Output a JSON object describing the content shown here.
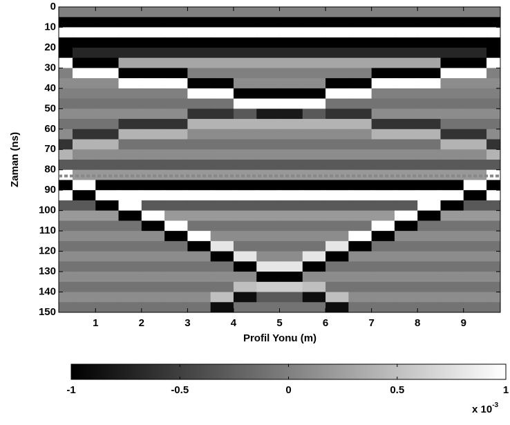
{
  "chart_data": {
    "type": "heatmap",
    "xlabel": "Profil Yonu (m)",
    "ylabel": "Zaman (ns)",
    "x": [
      0.25,
      0.75,
      1.25,
      1.75,
      2.25,
      2.75,
      3.25,
      3.75,
      4.25,
      4.75,
      5.25,
      5.75,
      6.25,
      6.75,
      7.25,
      7.75,
      8.25,
      8.75,
      9.25,
      9.75
    ],
    "y": [
      2.5,
      7.5,
      12.5,
      17.5,
      22.5,
      27.5,
      32.5,
      37.5,
      42.5,
      47.5,
      52.5,
      57.5,
      62.5,
      67.5,
      72.5,
      77.5,
      82.5,
      87.5,
      92.5,
      97.5,
      102.5,
      107.5,
      112.5,
      117.5,
      122.5,
      127.5,
      132.5,
      137.5,
      142.5,
      147.5
    ],
    "z": [
      [
        0,
        0,
        0,
        0,
        0,
        0,
        0,
        0,
        0,
        0,
        0,
        0,
        0,
        0,
        0,
        0,
        0,
        0,
        0,
        0
      ],
      [
        -1,
        -1,
        -1,
        -1,
        -1,
        -1,
        -1,
        -1,
        -1,
        -1,
        -1,
        -1,
        -1,
        -1,
        -1,
        -1,
        -1,
        -1,
        -1,
        -1
      ],
      [
        1,
        1,
        1,
        1,
        1,
        1,
        1,
        1,
        1,
        1,
        1,
        1,
        1,
        1,
        1,
        1,
        1,
        1,
        1,
        1
      ],
      [
        -1,
        -1,
        -1,
        -1,
        -1,
        -1,
        -1,
        -1,
        -1,
        -1,
        -1,
        -1,
        -1,
        -1,
        -1,
        -1,
        -1,
        -1,
        -1,
        -1
      ],
      [
        -1,
        -0.7,
        -0.7,
        -0.7,
        -0.7,
        -0.7,
        -0.7,
        -0.7,
        -0.7,
        -0.7,
        -0.7,
        -0.7,
        -0.7,
        -0.7,
        -0.7,
        -0.7,
        -0.7,
        -0.7,
        -0.7,
        -1
      ],
      [
        1,
        -1,
        -1,
        0.3,
        0.3,
        0.3,
        0.3,
        0.3,
        0.3,
        0.3,
        0.3,
        0.3,
        0.3,
        0.3,
        0.3,
        0.3,
        0.3,
        -1,
        -1,
        1
      ],
      [
        0,
        1,
        1,
        -1,
        -1,
        -1,
        0,
        0,
        0,
        0,
        0,
        0,
        0,
        0,
        -1,
        -1,
        -1,
        1,
        1,
        0
      ],
      [
        0.1,
        0.1,
        0.1,
        1,
        1,
        1,
        -1,
        -1,
        0.1,
        0.1,
        0.1,
        0.1,
        -1,
        -1,
        1,
        1,
        1,
        0.1,
        0.1,
        0.1
      ],
      [
        0,
        0,
        0,
        0,
        0,
        0,
        1,
        1,
        -1,
        -1,
        -1,
        -1,
        1,
        1,
        0,
        0,
        0,
        0,
        0,
        0
      ],
      [
        -0.1,
        -0.1,
        -0.1,
        -0.1,
        -0.1,
        -0.1,
        -0.1,
        -0.1,
        1,
        1,
        1,
        1,
        -0.1,
        -0.1,
        -0.1,
        -0.1,
        -0.1,
        -0.1,
        -0.1,
        -0.1
      ],
      [
        0.1,
        0.1,
        0.1,
        0.1,
        0.1,
        0.1,
        -0.6,
        -0.6,
        -0.3,
        -0.8,
        -0.8,
        -0.3,
        -0.6,
        -0.6,
        0.1,
        0.1,
        0.1,
        0.1,
        0.1,
        0.1
      ],
      [
        -0.1,
        -0.1,
        -0.1,
        -0.6,
        -0.6,
        -0.6,
        0.4,
        0.4,
        0.4,
        0.4,
        0.4,
        0.4,
        0.4,
        0.4,
        -0.6,
        -0.6,
        -0.6,
        -0.1,
        -0.1,
        -0.1
      ],
      [
        0.1,
        -0.6,
        -0.6,
        0.4,
        0.4,
        0.4,
        0.1,
        0.1,
        0.1,
        0.1,
        0.1,
        0.1,
        0.1,
        0.1,
        0.4,
        0.4,
        0.4,
        -0.6,
        -0.6,
        0.1
      ],
      [
        -0.6,
        0.4,
        0.4,
        -0.1,
        -0.1,
        -0.1,
        -0.1,
        -0.1,
        -0.1,
        -0.1,
        -0.1,
        -0.1,
        -0.1,
        -0.1,
        -0.1,
        -0.1,
        -0.1,
        0.4,
        0.4,
        -0.6
      ],
      [
        0.4,
        0.1,
        0.1,
        0.1,
        0.1,
        0.1,
        0.1,
        0.1,
        0.1,
        0.1,
        0.1,
        0.1,
        0.1,
        0.1,
        0.1,
        0.1,
        0.1,
        0.1,
        0.1,
        0.4
      ],
      [
        -0.3,
        -0.3,
        -0.3,
        -0.3,
        -0.3,
        -0.3,
        -0.3,
        -0.3,
        -0.3,
        -0.3,
        -0.3,
        -0.3,
        -0.3,
        -0.3,
        -0.3,
        -0.3,
        -0.3,
        -0.3,
        -0.3,
        -0.3
      ],
      [
        1,
        0.2,
        0.2,
        0.2,
        0.2,
        0.2,
        0.2,
        0.2,
        0.2,
        0.2,
        0.2,
        0.2,
        0.2,
        0.2,
        0.2,
        0.2,
        0.2,
        0.2,
        0.2,
        1
      ],
      [
        -1,
        1,
        -1,
        -1,
        -1,
        -1,
        -1,
        -1,
        -1,
        -1,
        -1,
        -1,
        -1,
        -1,
        -1,
        -1,
        -1,
        -1,
        1,
        -1
      ],
      [
        1,
        -1,
        1,
        1,
        1,
        1,
        1,
        1,
        1,
        1,
        1,
        1,
        1,
        1,
        1,
        1,
        1,
        1,
        -1,
        1
      ],
      [
        -0.3,
        -0.3,
        -1,
        1,
        -0.3,
        -0.3,
        -0.3,
        -0.3,
        -0.3,
        -0.3,
        -0.3,
        -0.3,
        -0.3,
        -0.3,
        -0.3,
        -0.3,
        1,
        -1,
        -0.3,
        -0.3
      ],
      [
        0.2,
        0.2,
        0.2,
        -1,
        1,
        0.2,
        0.2,
        0.2,
        0.2,
        0.2,
        0.2,
        0.2,
        0.2,
        0.2,
        0.2,
        1,
        -1,
        0.2,
        0.2,
        0.2
      ],
      [
        -0.1,
        -0.1,
        -0.1,
        -0.1,
        -1,
        1,
        -0.1,
        -0.1,
        -0.1,
        -0.1,
        -0.1,
        -0.1,
        -0.1,
        -0.1,
        1,
        -1,
        -0.1,
        -0.1,
        -0.1,
        -0.1
      ],
      [
        0.1,
        0.1,
        0.1,
        0.1,
        0.1,
        -1,
        1,
        0.1,
        0.1,
        0.1,
        0.1,
        0.1,
        0.1,
        1,
        -1,
        0.1,
        0.1,
        0.1,
        0.1,
        0.1
      ],
      [
        -0.1,
        -0.1,
        -0.1,
        -0.1,
        -0.1,
        -0.1,
        -1,
        0.8,
        -0.1,
        -0.1,
        -0.1,
        -0.1,
        0.8,
        -1,
        -0.1,
        -0.1,
        -0.1,
        -0.1,
        -0.1,
        -0.1
      ],
      [
        0.1,
        0.1,
        0.1,
        0.1,
        0.1,
        0.1,
        0.1,
        -1,
        0.8,
        0.1,
        0.1,
        0.8,
        -1,
        0.1,
        0.1,
        0.1,
        0.1,
        0.1,
        0.1,
        0.1
      ],
      [
        -0.1,
        -0.1,
        -0.1,
        -0.1,
        -0.1,
        -0.1,
        -0.1,
        -0.1,
        -1,
        0.8,
        0.8,
        -1,
        -0.1,
        -0.1,
        -0.1,
        -0.1,
        -0.1,
        -0.1,
        -0.1,
        -0.1
      ],
      [
        0.1,
        0.1,
        0.1,
        0.1,
        0.1,
        0.1,
        0.1,
        0.1,
        0.1,
        -1,
        -1,
        0.1,
        0.1,
        0.1,
        0.1,
        0.1,
        0.1,
        0.1,
        0.1,
        0.1
      ],
      [
        -0.1,
        -0.1,
        -0.1,
        -0.1,
        -0.1,
        -0.1,
        -0.1,
        -0.1,
        0.5,
        0.6,
        0.6,
        0.5,
        -0.1,
        -0.1,
        -0.1,
        -0.1,
        -0.1,
        -0.1,
        -0.1,
        -0.1
      ],
      [
        0.1,
        0.1,
        0.1,
        0.1,
        0.1,
        0.1,
        0.1,
        0.5,
        -0.9,
        -0.3,
        -0.3,
        -0.9,
        0.5,
        0.1,
        0.1,
        0.1,
        0.1,
        0.1,
        0.1,
        0.1
      ],
      [
        -0.1,
        -0.1,
        -0.1,
        -0.1,
        -0.1,
        -0.1,
        -0.1,
        -0.9,
        -0.1,
        -0.1,
        -0.1,
        -0.1,
        -0.9,
        -0.1,
        -0.1,
        -0.1,
        -0.1,
        -0.1,
        -0.1,
        -0.1
      ]
    ],
    "xlim": [
      0.2,
      9.8
    ],
    "xticks": [
      1,
      2,
      3,
      4,
      5,
      6,
      7,
      8,
      9
    ],
    "ylim": [
      0,
      150
    ],
    "y_inverted": true,
    "yticks": [
      0,
      10,
      20,
      30,
      40,
      50,
      60,
      70,
      80,
      90,
      100,
      110,
      120,
      130,
      140,
      150
    ],
    "hline": 83,
    "hline_color": "#888888",
    "colormap": "gray",
    "clim": [
      -1,
      1
    ],
    "cticks": [
      -1,
      -0.5,
      0,
      0.5,
      1
    ],
    "colorbar_label": "x 10",
    "colorbar_exponent": "-3"
  }
}
